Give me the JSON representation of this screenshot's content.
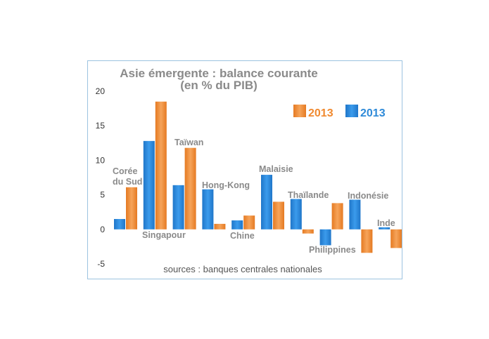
{
  "chart_data": {
    "type": "bar",
    "title": [
      "Asie émergente : balance courante",
      "(en % du PIB)"
    ],
    "note": "sources : banques centrales nationales",
    "ylim": [
      -5,
      20
    ],
    "yticks": [
      "20",
      "15",
      "10",
      "5",
      "0",
      "-5"
    ],
    "grid": false,
    "legend_position": "top-right",
    "categories": [
      [
        "Corée",
        "du Sud"
      ],
      [
        "Singapour"
      ],
      [
        "Taïwan"
      ],
      [
        "Hong-Kong"
      ],
      [
        "Chine"
      ],
      [
        "Malaisie"
      ],
      [
        "Thaïlande"
      ],
      [
        "Philippines"
      ],
      [
        "Indonésie"
      ],
      [
        "Inde"
      ]
    ],
    "series": [
      {
        "name": "2013",
        "color": "#2e8ad8",
        "values": [
          1.5,
          12.8,
          6.4,
          5.8,
          1.3,
          7.9,
          4.4,
          -2.3,
          4.3,
          0.3
        ]
      },
      {
        "name": "2013",
        "color": "#f0892f",
        "values": [
          6.1,
          18.5,
          11.8,
          0.8,
          2.0,
          4.0,
          -0.6,
          3.8,
          -3.4,
          -2.7
        ]
      }
    ],
    "legend_order": [
      1,
      0
    ]
  }
}
